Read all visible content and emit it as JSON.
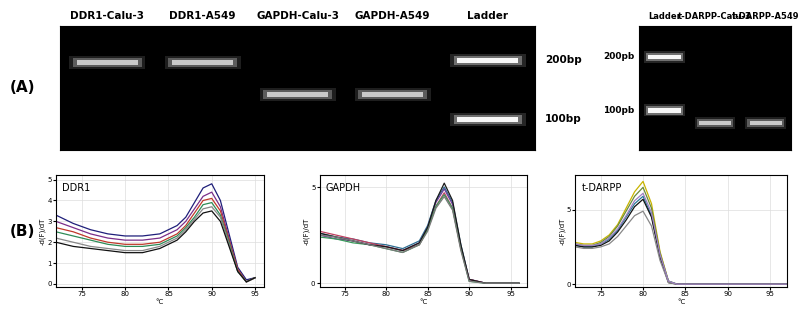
{
  "chart_data": [
    {
      "type": "gel",
      "label": "(A)",
      "categories": [
        "DDR1-Calu-3",
        "DDR1-A549",
        "GAPDH-Calu-3",
        "GAPDH-A549",
        "Ladder"
      ],
      "values": [
        195,
        195,
        134,
        134,
        null
      ],
      "ladder": {
        "values": [
          200,
          100
        ],
        "value_labels": [
          "200bp",
          "100bp"
        ]
      },
      "ylim": [
        70,
        300
      ],
      "log": "y",
      "tick_labels": "x"
    },
    {
      "type": "gel",
      "categories": [
        "Ladder",
        "t-DARPP-Calu-3",
        "t-DARPP-A549"
      ],
      "values": [
        null,
        85,
        85
      ],
      "ladder": {
        "values": [
          200,
          100
        ],
        "value_labels": [
          "200pb",
          "100pb"
        ]
      },
      "ylim": [
        60,
        300
      ],
      "log": "y",
      "tick_labels": "x"
    },
    {
      "type": "line",
      "label": "(B)",
      "title": "DDR1",
      "x_label": "°C",
      "y_label": "-d(F)/dT",
      "x": [
        72,
        74,
        76,
        78,
        80,
        82,
        84,
        86,
        87,
        88,
        89,
        90,
        91,
        92,
        93,
        94,
        95
      ],
      "series": [
        {
          "color": "#1f1f7a",
          "values": [
            3.3,
            2.9,
            2.6,
            2.4,
            2.3,
            2.3,
            2.4,
            2.8,
            3.2,
            3.9,
            4.6,
            4.8,
            4.0,
            2.4,
            0.8,
            0.2,
            0.3
          ]
        },
        {
          "color": "#7a2e8a",
          "values": [
            3.0,
            2.7,
            2.4,
            2.2,
            2.1,
            2.1,
            2.2,
            2.6,
            3.0,
            3.6,
            4.2,
            4.4,
            3.7,
            2.2,
            0.7,
            0.1,
            0.3
          ]
        },
        {
          "color": "#c0392b",
          "values": [
            2.7,
            2.5,
            2.2,
            2.0,
            1.9,
            1.9,
            2.0,
            2.4,
            2.8,
            3.4,
            4.0,
            4.1,
            3.5,
            2.1,
            0.7,
            0.1,
            0.3
          ]
        },
        {
          "color": "#2e8b57",
          "values": [
            2.5,
            2.3,
            2.1,
            1.9,
            1.8,
            1.8,
            1.9,
            2.3,
            2.7,
            3.2,
            3.8,
            3.9,
            3.3,
            2.0,
            0.6,
            0.1,
            0.3
          ]
        },
        {
          "color": "#888888",
          "values": [
            2.2,
            2.0,
            1.8,
            1.7,
            1.6,
            1.6,
            1.8,
            2.2,
            2.6,
            3.1,
            3.6,
            3.7,
            3.2,
            1.9,
            0.6,
            0.1,
            0.3
          ]
        },
        {
          "color": "#111111",
          "values": [
            2.0,
            1.8,
            1.7,
            1.6,
            1.5,
            1.5,
            1.7,
            2.1,
            2.5,
            3.0,
            3.4,
            3.5,
            3.0,
            1.8,
            0.6,
            0.1,
            0.3
          ]
        }
      ],
      "xlim": [
        72,
        96
      ],
      "ylim": [
        -0.15,
        5.2
      ],
      "xticks": [
        75,
        80,
        85,
        90,
        95
      ],
      "yticks": [
        0,
        1,
        2,
        3,
        4,
        5
      ],
      "grid": true
    },
    {
      "type": "line",
      "title": "GAPDH",
      "x_label": "°C",
      "y_label": "-d(F)/dT",
      "x": [
        72,
        74,
        76,
        78,
        80,
        82,
        84,
        85,
        86,
        87,
        88,
        89,
        90,
        92,
        94,
        96
      ],
      "series": [
        {
          "color": "#2c6e91",
          "values": [
            2.6,
            2.4,
            2.3,
            2.1,
            2.0,
            1.8,
            2.2,
            3.0,
            4.3,
            5.0,
            4.2,
            2.0,
            0.2,
            0,
            0,
            0
          ]
        },
        {
          "color": "#6a3d9a",
          "values": [
            2.5,
            2.3,
            2.2,
            2.0,
            1.9,
            1.7,
            2.1,
            2.9,
            4.2,
            4.9,
            4.1,
            1.9,
            0.2,
            0,
            0,
            0
          ]
        },
        {
          "color": "#c04060",
          "values": [
            2.7,
            2.5,
            2.3,
            2.1,
            1.9,
            1.7,
            2.0,
            2.8,
            4.0,
            4.7,
            3.9,
            1.8,
            0.2,
            0,
            0,
            0
          ]
        },
        {
          "color": "#3a9a5a",
          "values": [
            2.4,
            2.3,
            2.1,
            2.0,
            1.8,
            1.6,
            2.0,
            2.8,
            4.0,
            4.6,
            3.9,
            1.8,
            0.1,
            0,
            0,
            0
          ]
        },
        {
          "color": "#1a1a1a",
          "values": [
            2.6,
            2.4,
            2.2,
            2.0,
            1.9,
            1.7,
            2.1,
            2.9,
            4.3,
            5.2,
            4.3,
            2.0,
            0.2,
            0,
            0,
            0
          ]
        },
        {
          "color": "#7a7a7a",
          "values": [
            2.5,
            2.4,
            2.2,
            2.0,
            1.8,
            1.6,
            2.0,
            2.7,
            3.9,
            4.5,
            3.8,
            1.7,
            0.1,
            0,
            0,
            0
          ]
        }
      ],
      "xlim": [
        72,
        97
      ],
      "ylim": [
        -0.2,
        5.6
      ],
      "xticks": [
        75,
        80,
        85,
        90,
        95
      ],
      "yticks": [
        0,
        5
      ],
      "grid": true
    },
    {
      "type": "line",
      "title": "t-DARPP",
      "x_label": "°C",
      "y_label": "-d(F)/dT",
      "x": [
        72,
        73,
        74,
        75,
        76,
        77,
        78,
        79,
        80,
        81,
        82,
        83,
        84,
        86,
        90,
        94,
        97
      ],
      "series": [
        {
          "color": "#c8b400",
          "values": [
            2.8,
            2.7,
            2.7,
            2.9,
            3.3,
            4.0,
            5.1,
            6.2,
            6.9,
            5.4,
            2.2,
            0.2,
            0,
            0,
            0,
            0,
            0
          ]
        },
        {
          "color": "#6a8a3a",
          "values": [
            2.7,
            2.6,
            2.6,
            2.8,
            3.2,
            3.9,
            4.9,
            5.9,
            6.5,
            5.1,
            2.1,
            0.2,
            0,
            0,
            0,
            0,
            0
          ]
        },
        {
          "color": "#2a7a9a",
          "values": [
            2.6,
            2.5,
            2.5,
            2.7,
            3.0,
            3.6,
            4.5,
            5.4,
            5.9,
            4.6,
            1.9,
            0.2,
            0,
            0,
            0,
            0,
            0
          ]
        },
        {
          "color": "#111111",
          "values": [
            2.6,
            2.5,
            2.5,
            2.6,
            2.9,
            3.5,
            4.3,
            5.2,
            5.7,
            4.5,
            1.8,
            0.1,
            0,
            0,
            0,
            0,
            0
          ]
        },
        {
          "color": "#888888",
          "values": [
            2.5,
            2.4,
            2.4,
            2.5,
            2.7,
            3.2,
            3.9,
            4.6,
            4.9,
            3.9,
            1.6,
            0.1,
            0,
            0,
            0,
            0,
            0
          ]
        },
        {
          "color": "#a080c0",
          "values": [
            2.7,
            2.6,
            2.6,
            2.7,
            3.1,
            3.7,
            4.6,
            5.6,
            6.1,
            4.8,
            2.0,
            0.2,
            0,
            0,
            0,
            0,
            0
          ]
        }
      ],
      "xlim": [
        72,
        97
      ],
      "ylim": [
        -0.2,
        7.3
      ],
      "xticks": [
        75,
        80,
        85,
        90,
        95
      ],
      "yticks": [
        0,
        5
      ],
      "grid": true
    }
  ]
}
